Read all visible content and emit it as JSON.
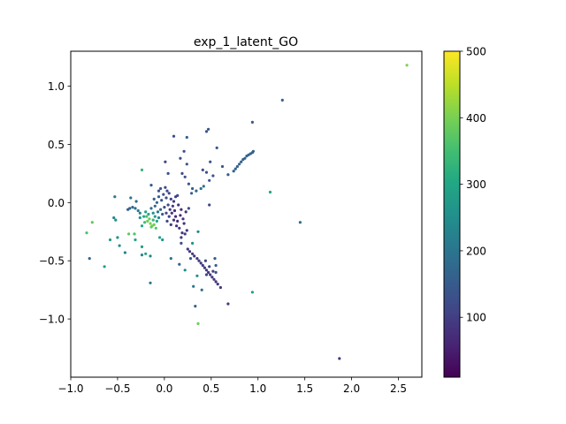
{
  "chart_data": {
    "type": "scatter",
    "title": "exp_1_latent_GO",
    "xlabel": "",
    "ylabel": "",
    "xlim": [
      -1.0,
      2.75
    ],
    "ylim": [
      -1.5,
      1.3
    ],
    "xticks": [
      -1.0,
      -0.5,
      0.0,
      0.5,
      1.0,
      1.5,
      2.0,
      2.5
    ],
    "xtick_labels": [
      "−1.0",
      "−0.5",
      "0.0",
      "0.5",
      "1.0",
      "1.5",
      "2.0",
      "2.5"
    ],
    "yticks": [
      -1.0,
      -0.5,
      0.0,
      0.5,
      1.0
    ],
    "ytick_labels": [
      "−1.0",
      "−0.5",
      "0.0",
      "0.5",
      "1.0"
    ],
    "grid": false,
    "legend": "none",
    "colorbar": {
      "colormap": "viridis",
      "range": [
        10,
        500
      ],
      "ticks": [
        100,
        200,
        300,
        400,
        500
      ],
      "tick_labels": [
        "100",
        "200",
        "300",
        "400",
        "500"
      ]
    },
    "points": [
      {
        "x": 2.59,
        "y": 1.18,
        "c": 400
      },
      {
        "x": 1.26,
        "y": 0.88,
        "c": 160
      },
      {
        "x": 0.94,
        "y": 0.69,
        "c": 150
      },
      {
        "x": 1.87,
        "y": -1.34,
        "c": 90
      },
      {
        "x": 1.45,
        "y": -0.17,
        "c": 180
      },
      {
        "x": 1.13,
        "y": 0.09,
        "c": 300
      },
      {
        "x": 0.94,
        "y": -0.77,
        "c": 280
      },
      {
        "x": 0.68,
        "y": -0.87,
        "c": 90
      },
      {
        "x": 0.36,
        "y": -1.04,
        "c": 390
      },
      {
        "x": 0.33,
        "y": -0.89,
        "c": 170
      },
      {
        "x": 0.47,
        "y": 0.63,
        "c": 140
      },
      {
        "x": 0.45,
        "y": 0.61,
        "c": 140
      },
      {
        "x": 0.24,
        "y": 0.56,
        "c": 160
      },
      {
        "x": 0.1,
        "y": 0.57,
        "c": 120
      },
      {
        "x": 0.21,
        "y": 0.44,
        "c": 120
      },
      {
        "x": 0.56,
        "y": 0.47,
        "c": 150
      },
      {
        "x": 0.49,
        "y": 0.35,
        "c": 140
      },
      {
        "x": 0.74,
        "y": 0.27,
        "c": 160
      },
      {
        "x": 0.76,
        "y": 0.29,
        "c": 160
      },
      {
        "x": 0.78,
        "y": 0.31,
        "c": 160
      },
      {
        "x": 0.8,
        "y": 0.33,
        "c": 160
      },
      {
        "x": 0.82,
        "y": 0.35,
        "c": 160
      },
      {
        "x": 0.84,
        "y": 0.37,
        "c": 160
      },
      {
        "x": 0.86,
        "y": 0.38,
        "c": 160
      },
      {
        "x": 0.88,
        "y": 0.4,
        "c": 160
      },
      {
        "x": 0.9,
        "y": 0.41,
        "c": 160
      },
      {
        "x": 0.92,
        "y": 0.42,
        "c": 160
      },
      {
        "x": 0.94,
        "y": 0.43,
        "c": 160
      },
      {
        "x": 0.95,
        "y": 0.44,
        "c": 160
      },
      {
        "x": 0.68,
        "y": 0.24,
        "c": 150
      },
      {
        "x": 0.62,
        "y": 0.31,
        "c": 150
      },
      {
        "x": 0.41,
        "y": 0.28,
        "c": 130
      },
      {
        "x": 0.45,
        "y": 0.26,
        "c": 130
      },
      {
        "x": 0.24,
        "y": 0.33,
        "c": 140
      },
      {
        "x": 0.17,
        "y": 0.38,
        "c": 130
      },
      {
        "x": 0.19,
        "y": 0.25,
        "c": 120
      },
      {
        "x": 0.22,
        "y": 0.22,
        "c": 130
      },
      {
        "x": 0.26,
        "y": 0.16,
        "c": 140
      },
      {
        "x": 0.3,
        "y": 0.12,
        "c": 150
      },
      {
        "x": 0.34,
        "y": 0.1,
        "c": 170
      },
      {
        "x": 0.39,
        "y": 0.12,
        "c": 190
      },
      {
        "x": 0.42,
        "y": 0.14,
        "c": 200
      },
      {
        "x": 0.29,
        "y": 0.08,
        "c": 160
      },
      {
        "x": 0.52,
        "y": 0.23,
        "c": 140
      },
      {
        "x": 0.48,
        "y": 0.19,
        "c": 140
      },
      {
        "x": 0.04,
        "y": 0.25,
        "c": 130
      },
      {
        "x": 0.01,
        "y": 0.35,
        "c": 110
      },
      {
        "x": -0.24,
        "y": 0.28,
        "c": 330
      },
      {
        "x": -0.14,
        "y": 0.15,
        "c": 150
      },
      {
        "x": -0.06,
        "y": 0.1,
        "c": 140
      },
      {
        "x": 0.14,
        "y": 0.06,
        "c": 120
      },
      {
        "x": -0.53,
        "y": 0.05,
        "c": 210
      },
      {
        "x": -0.36,
        "y": 0.04,
        "c": 200
      },
      {
        "x": -0.3,
        "y": 0.01,
        "c": 180
      },
      {
        "x": 0.48,
        "y": -0.02,
        "c": 110
      },
      {
        "x": -0.39,
        "y": -0.06,
        "c": 160
      },
      {
        "x": -0.37,
        "y": -0.05,
        "c": 170
      },
      {
        "x": -0.34,
        "y": -0.04,
        "c": 170
      },
      {
        "x": -0.31,
        "y": -0.05,
        "c": 190
      },
      {
        "x": -0.28,
        "y": -0.07,
        "c": 220
      },
      {
        "x": -0.26,
        "y": -0.09,
        "c": 230
      },
      {
        "x": -0.54,
        "y": -0.13,
        "c": 230
      },
      {
        "x": -0.52,
        "y": -0.15,
        "c": 250
      },
      {
        "x": -0.77,
        "y": -0.17,
        "c": 380
      },
      {
        "x": -0.83,
        "y": -0.26,
        "c": 360
      },
      {
        "x": -0.8,
        "y": -0.48,
        "c": 170
      },
      {
        "x": -0.64,
        "y": -0.55,
        "c": 280
      },
      {
        "x": -0.58,
        "y": -0.32,
        "c": 280
      },
      {
        "x": -0.5,
        "y": -0.3,
        "c": 260
      },
      {
        "x": -0.48,
        "y": -0.37,
        "c": 260
      },
      {
        "x": -0.42,
        "y": -0.43,
        "c": 230
      },
      {
        "x": -0.38,
        "y": -0.27,
        "c": 380
      },
      {
        "x": -0.32,
        "y": -0.27,
        "c": 360
      },
      {
        "x": -0.31,
        "y": -0.32,
        "c": 300
      },
      {
        "x": -0.24,
        "y": -0.38,
        "c": 280
      },
      {
        "x": -0.2,
        "y": -0.44,
        "c": 300
      },
      {
        "x": -0.15,
        "y": -0.46,
        "c": 230
      },
      {
        "x": -0.24,
        "y": -0.45,
        "c": 230
      },
      {
        "x": -0.15,
        "y": -0.69,
        "c": 200
      },
      {
        "x": -0.05,
        "y": -0.3,
        "c": 300
      },
      {
        "x": -0.02,
        "y": -0.32,
        "c": 260
      },
      {
        "x": 0.07,
        "y": -0.48,
        "c": 200
      },
      {
        "x": 0.16,
        "y": -0.53,
        "c": 160
      },
      {
        "x": 0.22,
        "y": -0.58,
        "c": 250
      },
      {
        "x": 0.28,
        "y": -0.48,
        "c": 150
      },
      {
        "x": 0.3,
        "y": -0.35,
        "c": 260
      },
      {
        "x": 0.36,
        "y": -0.25,
        "c": 230
      },
      {
        "x": 0.18,
        "y": -0.3,
        "c": 90
      },
      {
        "x": 0.22,
        "y": -0.27,
        "c": 100
      },
      {
        "x": 0.18,
        "y": -0.35,
        "c": 120
      },
      {
        "x": 0.26,
        "y": -0.05,
        "c": 130
      },
      {
        "x": 0.35,
        "y": -0.63,
        "c": 250
      },
      {
        "x": 0.31,
        "y": -0.72,
        "c": 200
      },
      {
        "x": 0.4,
        "y": -0.75,
        "c": 190
      },
      {
        "x": 0.25,
        "y": -0.4,
        "c": 90
      },
      {
        "x": 0.27,
        "y": -0.42,
        "c": 90
      },
      {
        "x": 0.3,
        "y": -0.44,
        "c": 90
      },
      {
        "x": 0.32,
        "y": -0.46,
        "c": 90
      },
      {
        "x": 0.35,
        "y": -0.48,
        "c": 90
      },
      {
        "x": 0.37,
        "y": -0.5,
        "c": 90
      },
      {
        "x": 0.39,
        "y": -0.52,
        "c": 90
      },
      {
        "x": 0.41,
        "y": -0.54,
        "c": 90
      },
      {
        "x": 0.43,
        "y": -0.56,
        "c": 90
      },
      {
        "x": 0.45,
        "y": -0.58,
        "c": 90
      },
      {
        "x": 0.47,
        "y": -0.6,
        "c": 90
      },
      {
        "x": 0.49,
        "y": -0.62,
        "c": 90
      },
      {
        "x": 0.51,
        "y": -0.64,
        "c": 90
      },
      {
        "x": 0.53,
        "y": -0.66,
        "c": 90
      },
      {
        "x": 0.55,
        "y": -0.68,
        "c": 90
      },
      {
        "x": 0.57,
        "y": -0.7,
        "c": 90
      },
      {
        "x": 0.44,
        "y": -0.5,
        "c": 110
      },
      {
        "x": 0.48,
        "y": -0.55,
        "c": 110
      },
      {
        "x": 0.52,
        "y": -0.59,
        "c": 100
      },
      {
        "x": 0.55,
        "y": -0.6,
        "c": 130
      },
      {
        "x": 0.54,
        "y": -0.48,
        "c": 150
      },
      {
        "x": 0.55,
        "y": -0.54,
        "c": 160
      },
      {
        "x": 0.45,
        "y": -0.62,
        "c": 110
      },
      {
        "x": 0.6,
        "y": -0.73,
        "c": 90
      },
      {
        "x": -0.16,
        "y": -0.14,
        "c": 380
      },
      {
        "x": -0.18,
        "y": -0.16,
        "c": 390
      },
      {
        "x": -0.15,
        "y": -0.18,
        "c": 400
      },
      {
        "x": -0.13,
        "y": -0.2,
        "c": 400
      },
      {
        "x": -0.11,
        "y": -0.19,
        "c": 390
      },
      {
        "x": -0.19,
        "y": -0.12,
        "c": 360
      },
      {
        "x": -0.12,
        "y": -0.15,
        "c": 330
      },
      {
        "x": -0.14,
        "y": -0.21,
        "c": 380
      },
      {
        "x": -0.21,
        "y": -0.17,
        "c": 350
      },
      {
        "x": -0.09,
        "y": -0.22,
        "c": 370
      },
      {
        "x": -0.17,
        "y": -0.1,
        "c": 300
      },
      {
        "x": -0.1,
        "y": -0.12,
        "c": 280
      },
      {
        "x": -0.08,
        "y": -0.16,
        "c": 300
      },
      {
        "x": -0.12,
        "y": -0.09,
        "c": 250
      },
      {
        "x": -0.2,
        "y": -0.08,
        "c": 280
      },
      {
        "x": -0.22,
        "y": -0.12,
        "c": 310
      },
      {
        "x": -0.06,
        "y": -0.13,
        "c": 240
      },
      {
        "x": -0.07,
        "y": -0.08,
        "c": 200
      },
      {
        "x": -0.14,
        "y": -0.05,
        "c": 180
      },
      {
        "x": -0.1,
        "y": -0.03,
        "c": 170
      },
      {
        "x": -0.04,
        "y": -0.06,
        "c": 160
      },
      {
        "x": -0.03,
        "y": 0.02,
        "c": 140
      },
      {
        "x": -0.06,
        "y": 0.05,
        "c": 150
      },
      {
        "x": -0.01,
        "y": 0.07,
        "c": 130
      },
      {
        "x": 0.02,
        "y": 0.04,
        "c": 120
      },
      {
        "x": 0.03,
        "y": 0.1,
        "c": 120
      },
      {
        "x": -0.04,
        "y": 0.12,
        "c": 140
      },
      {
        "x": 0.01,
        "y": 0.13,
        "c": 110
      },
      {
        "x": 0.05,
        "y": 0.08,
        "c": 110
      },
      {
        "x": 0.07,
        "y": 0.03,
        "c": 100
      },
      {
        "x": 0.04,
        "y": -0.02,
        "c": 110
      },
      {
        "x": 0.0,
        "y": -0.04,
        "c": 120
      },
      {
        "x": 0.06,
        "y": -0.06,
        "c": 90
      },
      {
        "x": 0.09,
        "y": -0.03,
        "c": 90
      },
      {
        "x": 0.08,
        "y": -0.09,
        "c": 80
      },
      {
        "x": 0.11,
        "y": -0.07,
        "c": 70
      },
      {
        "x": 0.12,
        "y": -0.12,
        "c": 70
      },
      {
        "x": 0.1,
        "y": -0.15,
        "c": 80
      },
      {
        "x": 0.14,
        "y": -0.16,
        "c": 70
      },
      {
        "x": 0.13,
        "y": -0.2,
        "c": 80
      },
      {
        "x": 0.16,
        "y": -0.22,
        "c": 80
      },
      {
        "x": 0.05,
        "y": -0.12,
        "c": 100
      },
      {
        "x": 0.02,
        "y": -0.09,
        "c": 110
      },
      {
        "x": 0.15,
        "y": -0.02,
        "c": 80
      },
      {
        "x": 0.18,
        "y": -0.06,
        "c": 70
      },
      {
        "x": 0.17,
        "y": -0.11,
        "c": 70
      },
      {
        "x": 0.2,
        "y": -0.14,
        "c": 80
      },
      {
        "x": 0.21,
        "y": -0.18,
        "c": 80
      },
      {
        "x": 0.07,
        "y": -0.19,
        "c": 90
      },
      {
        "x": 0.03,
        "y": -0.16,
        "c": 110
      },
      {
        "x": -0.02,
        "y": -0.1,
        "c": 150
      },
      {
        "x": -0.26,
        "y": -0.13,
        "c": 270
      },
      {
        "x": -0.24,
        "y": -0.2,
        "c": 300
      },
      {
        "x": -0.08,
        "y": 0.0,
        "c": 160
      },
      {
        "x": -0.11,
        "y": 0.03,
        "c": 150
      },
      {
        "x": 0.1,
        "y": 0.01,
        "c": 90
      },
      {
        "x": 0.12,
        "y": 0.05,
        "c": 100
      },
      {
        "x": 0.23,
        "y": -0.08,
        "c": 80
      },
      {
        "x": 0.24,
        "y": -0.24,
        "c": 90
      },
      {
        "x": 0.19,
        "y": -0.26,
        "c": 90
      }
    ]
  }
}
